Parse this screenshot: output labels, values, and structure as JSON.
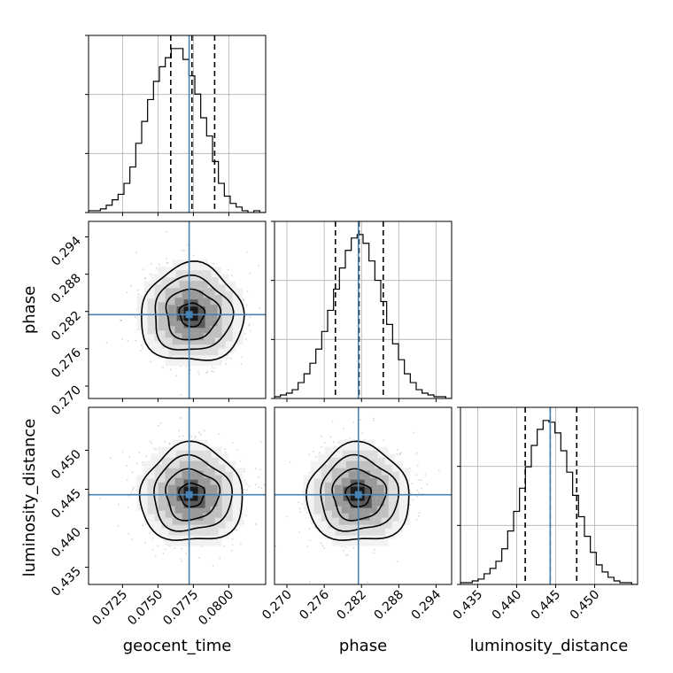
{
  "chart_data": {
    "type": "corner",
    "parameters": [
      "geocent_time",
      "phase",
      "luminosity_distance"
    ],
    "axis_labels": {
      "geocent_time": "geocent_time",
      "phase": "phase",
      "luminosity_distance": "luminosity_distance"
    },
    "ranges": {
      "geocent_time": [
        0.0701,
        0.0826
      ],
      "phase": [
        0.268,
        0.2965
      ],
      "luminosity_distance": [
        0.4328,
        0.4555
      ]
    },
    "tick_labels": {
      "geocent_time": [
        "0.0725",
        "0.0750",
        "0.0775",
        "0.0800"
      ],
      "phase": [
        "0.270",
        "0.276",
        "0.282",
        "0.288",
        "0.294"
      ],
      "luminosity_distance": [
        "0.435",
        "0.440",
        "0.445",
        "0.450"
      ]
    },
    "truths": {
      "geocent_time": 0.0772,
      "phase": 0.2815,
      "luminosity_distance": 0.4443
    },
    "quantiles": {
      "geocent_time": [
        0.0759,
        0.0774,
        0.079
      ],
      "phase": [
        0.2778,
        0.2816,
        0.2855
      ],
      "luminosity_distance": [
        0.4411,
        0.4443,
        0.4477
      ]
    },
    "histograms": {
      "geocent_time": [
        1,
        1,
        2,
        4,
        7,
        10,
        16,
        25,
        38,
        50,
        62,
        72,
        80,
        85,
        90,
        90,
        84,
        75,
        65,
        52,
        42,
        28,
        16,
        9,
        5,
        3,
        1,
        0,
        1,
        0
      ],
      "phase": [
        1,
        2,
        3,
        5,
        9,
        14,
        20,
        28,
        38,
        50,
        62,
        74,
        84,
        91,
        93,
        88,
        78,
        67,
        55,
        42,
        31,
        22,
        14,
        9,
        5,
        3,
        2,
        1,
        1,
        0
      ],
      "luminosity_distance": [
        1,
        1,
        2,
        3,
        6,
        9,
        13,
        20,
        30,
        41,
        54,
        66,
        78,
        87,
        92,
        91,
        85,
        75,
        63,
        50,
        38,
        27,
        18,
        11,
        7,
        4,
        2,
        1,
        1,
        0
      ]
    },
    "grid": true,
    "colors": {
      "truth": "#4682b4",
      "hist": "#000000",
      "quantile": "#000000",
      "scatter": "#bbbbbb"
    }
  }
}
